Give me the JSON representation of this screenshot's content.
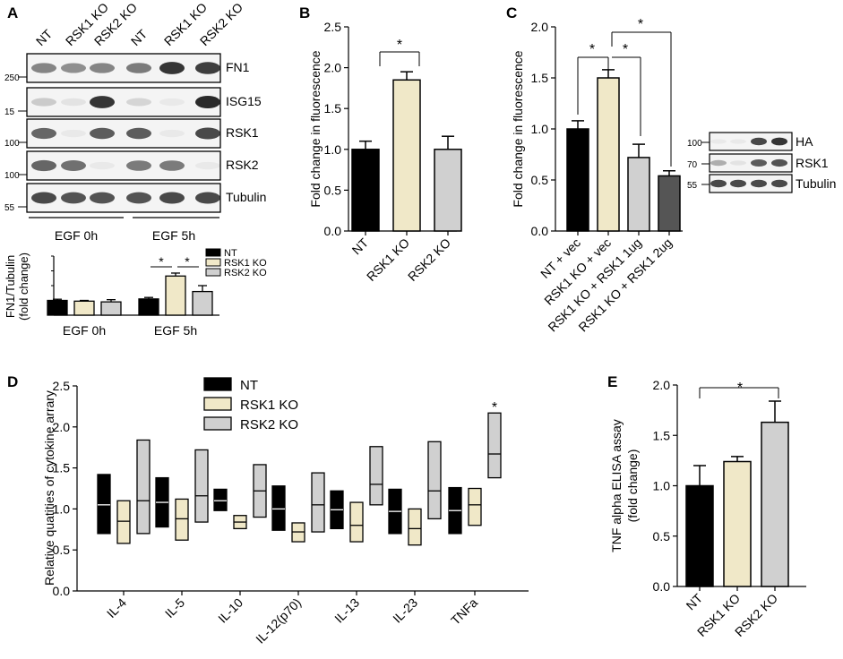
{
  "colors": {
    "black": "#000000",
    "beige": "#f0e8c8",
    "gray": "#d0d0d0",
    "darkgray": "#555555",
    "blot_bg": "#f4f4f4",
    "band": "#2a2a2a"
  },
  "panel_a": {
    "letter": "A",
    "lane_labels": [
      "NT",
      "RSK1 KO",
      "RSK2 KO",
      "NT",
      "RSK1 KO",
      "RSK2 KO"
    ],
    "blots": [
      {
        "name": "FN1",
        "marker": "250",
        "intensity": [
          0.55,
          0.5,
          0.55,
          0.6,
          0.95,
          0.9
        ]
      },
      {
        "name": "ISG15",
        "marker": "15",
        "intensity": [
          0.2,
          0.08,
          0.95,
          0.15,
          0.05,
          1.0
        ]
      },
      {
        "name": "RSK1",
        "marker": "100",
        "intensity": [
          0.7,
          0.05,
          0.75,
          0.75,
          0.05,
          0.85
        ]
      },
      {
        "name": "RSK2",
        "marker": "100",
        "intensity": [
          0.7,
          0.65,
          0.05,
          0.6,
          0.6,
          0.05
        ]
      },
      {
        "name": "Tubulin",
        "marker": "55",
        "intensity": [
          0.85,
          0.8,
          0.8,
          0.8,
          0.85,
          0.85
        ]
      }
    ],
    "group_labels": [
      "EGF 0h",
      "EGF 5h"
    ]
  },
  "chart_data": [
    {
      "panel": "A",
      "type": "bar",
      "ylabel": "FN1/Tubulin (fold change)",
      "categories": [
        "EGF 0h",
        "EGF 5h"
      ],
      "ylim": [
        0,
        4
      ],
      "series": [
        {
          "name": "NT",
          "values": [
            1.0,
            1.1
          ],
          "errors": [
            0.08,
            0.1
          ]
        },
        {
          "name": "RSK1 KO",
          "values": [
            0.95,
            2.65
          ],
          "errors": [
            0.05,
            0.2
          ]
        },
        {
          "name": "RSK2 KO",
          "values": [
            0.9,
            1.6
          ],
          "errors": [
            0.15,
            0.4
          ]
        }
      ],
      "legend": [
        "NT",
        "RSK1 KO",
        "RSK2 KO"
      ],
      "annotations": [
        "*",
        "*"
      ]
    },
    {
      "panel": "B",
      "type": "bar",
      "ylabel": "Fold change in fluorescence",
      "categories": [
        "NT",
        "RSK1 KO",
        "RSK2 KO"
      ],
      "values": [
        1.0,
        1.85,
        1.0
      ],
      "errors": [
        0.1,
        0.1,
        0.16
      ],
      "ylim": [
        0,
        2.5
      ],
      "yticks": [
        "0.0",
        "0.5",
        "1.0",
        "1.5",
        "2.0",
        "2.5"
      ],
      "annotations": [
        "*"
      ]
    },
    {
      "panel": "C",
      "type": "bar",
      "ylabel": "Fold change in fluorescence",
      "categories": [
        "NT + vec",
        "RSK1 KO + vec",
        "RSK1 KO + RSK1 1ug",
        "RSK1 KO + RSK1 2ug"
      ],
      "values": [
        1.0,
        1.5,
        0.72,
        0.54
      ],
      "errors": [
        0.08,
        0.08,
        0.13,
        0.05
      ],
      "ylim": [
        0,
        2.0
      ],
      "yticks": [
        "0.0",
        "0.5",
        "1.0",
        "1.5",
        "2.0"
      ],
      "annotations": [
        "*",
        "*",
        "*"
      ]
    },
    {
      "panel": "D",
      "type": "box",
      "ylabel": "Relative quatities of cytokine arrary",
      "categories": [
        "IL-4",
        "IL-5",
        "IL-10",
        "IL-12(p70)",
        "IL-13",
        "IL-23",
        "TNFa"
      ],
      "ylim": [
        0,
        2.5
      ],
      "yticks": [
        "0.0",
        "0.5",
        "1.0",
        "1.5",
        "2.0",
        "2.5"
      ],
      "legend": [
        "NT",
        "RSK1 KO",
        "RSK2 KO"
      ],
      "series": [
        {
          "name": "NT",
          "min": [
            0.7,
            0.78,
            0.98,
            0.74,
            0.76,
            0.7,
            0.7
          ],
          "max": [
            1.42,
            1.38,
            1.24,
            1.28,
            1.22,
            1.24,
            1.26
          ],
          "mean": [
            1.05,
            1.08,
            1.1,
            1.0,
            0.99,
            0.97,
            0.98
          ]
        },
        {
          "name": "RSK1 KO",
          "min": [
            0.58,
            0.62,
            0.76,
            0.6,
            0.6,
            0.56,
            0.8
          ],
          "max": [
            1.1,
            1.12,
            0.92,
            0.83,
            1.08,
            1.0,
            1.25
          ],
          "mean": [
            0.85,
            0.88,
            0.84,
            0.72,
            0.8,
            0.76,
            1.05
          ]
        },
        {
          "name": "RSK2 KO",
          "min": [
            0.7,
            0.84,
            0.9,
            0.72,
            1.05,
            0.88,
            1.38
          ],
          "max": [
            1.84,
            1.72,
            1.54,
            1.44,
            1.76,
            1.82,
            2.17
          ],
          "mean": [
            1.1,
            1.16,
            1.22,
            1.05,
            1.3,
            1.22,
            1.67
          ]
        }
      ],
      "annotations": [
        "*"
      ]
    },
    {
      "panel": "E",
      "type": "bar",
      "ylabel": "TNF alpha ELISA assay (fold change)",
      "categories": [
        "NT",
        "RSK1 KO",
        "RSK2 KO"
      ],
      "values": [
        1.0,
        1.24,
        1.63
      ],
      "errors": [
        0.2,
        0.05,
        0.21
      ],
      "ylim": [
        0,
        2.0
      ],
      "yticks": [
        "0.0",
        "0.5",
        "1.0",
        "1.5",
        "2.0"
      ],
      "annotations": [
        "*"
      ]
    }
  ],
  "panel_c_inset": {
    "rows": [
      {
        "name": "HA",
        "marker": "100",
        "intensity": [
          0.05,
          0.05,
          0.85,
          0.95
        ]
      },
      {
        "name": "RSK1",
        "marker": "70",
        "intensity": [
          0.35,
          0.08,
          0.75,
          0.8
        ]
      },
      {
        "name": "Tubulin",
        "marker": "55",
        "intensity": [
          0.85,
          0.85,
          0.85,
          0.85
        ]
      }
    ]
  },
  "letters": {
    "b": "B",
    "c": "C",
    "d": "D",
    "e": "E"
  }
}
